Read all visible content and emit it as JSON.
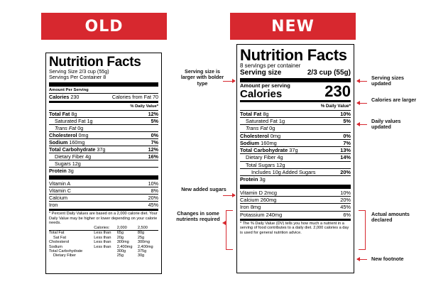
{
  "banners": {
    "old": "OLD",
    "new": "NEW"
  },
  "old_label": {
    "title": "Nutrition Facts",
    "serving_size": "Serving Size 2/3 cup (55g)",
    "servings_per": "Servings Per Container 8",
    "amount_per": "Amount Per Serving",
    "calories_label": "Calories",
    "calories_value": "230",
    "fat_cal": "Calories from Fat 70",
    "dv_header": "% Daily Value*",
    "rows": [
      {
        "name": "Total Fat",
        "amt": "8g",
        "dv": "12%"
      },
      {
        "name": "Saturated Fat",
        "amt": "1g",
        "dv": "5%"
      },
      {
        "name": "Trans Fat",
        "amt": "0g",
        "dv": ""
      },
      {
        "name": "Cholesterol",
        "amt": "0mg",
        "dv": "0%"
      },
      {
        "name": "Sodium",
        "amt": "160mg",
        "dv": "7%"
      },
      {
        "name": "Total Carbohydrate",
        "amt": "37g",
        "dv": "12%"
      },
      {
        "name": "Dietary Fiber",
        "amt": "4g",
        "dv": "16%"
      },
      {
        "name": "Sugars",
        "amt": "12g",
        "dv": ""
      },
      {
        "name": "Protein",
        "amt": "3g",
        "dv": ""
      }
    ],
    "vitamins": [
      {
        "name": "Vitamin A",
        "dv": "10%"
      },
      {
        "name": "Vitamin C",
        "dv": "8%"
      },
      {
        "name": "Calcium",
        "dv": "20%"
      },
      {
        "name": "Iron",
        "dv": "45%"
      }
    ],
    "footnote": "* Percent Daily Values are based on a 2,000 calorie diet. Your Daily Value may be higher or lower depending on your calorie needs.",
    "foot_table": {
      "header": [
        "",
        "Calories:",
        "2,000",
        "2,500"
      ],
      "rows": [
        [
          "Total Fat",
          "Less than",
          "65g",
          "80g"
        ],
        [
          "Sat Fat",
          "Less than",
          "20g",
          "25g"
        ],
        [
          "Cholesterol",
          "Less than",
          "300mg",
          "300mg"
        ],
        [
          "Sodium",
          "Less than",
          "2,400mg",
          "2,400mg"
        ],
        [
          "Total Carbohydrate",
          "",
          "300g",
          "375g"
        ],
        [
          "Dietary Fiber",
          "",
          "25g",
          "30g"
        ]
      ]
    }
  },
  "new_label": {
    "title": "Nutrition Facts",
    "servings_per": "8 servings per container",
    "serving_size_label": "Serving size",
    "serving_size_value": "2/3 cup (55g)",
    "amount_per": "Amount per serving",
    "calories_label": "Calories",
    "calories_value": "230",
    "dv_header": "% Daily Value*",
    "rows": [
      {
        "name": "Total Fat",
        "amt": "8g",
        "dv": "10%"
      },
      {
        "name": "Saturated Fat",
        "amt": "1g",
        "dv": "5%"
      },
      {
        "name": "Trans Fat",
        "amt": "0g",
        "dv": ""
      },
      {
        "name": "Cholesterol",
        "amt": "0mg",
        "dv": "0%"
      },
      {
        "name": "Sodium",
        "amt": "160mg",
        "dv": "7%"
      },
      {
        "name": "Total Carbohydrate",
        "amt": "37g",
        "dv": "13%"
      },
      {
        "name": "Dietary Fiber",
        "amt": "4g",
        "dv": "14%"
      },
      {
        "name": "Total Sugars",
        "amt": "12g",
        "dv": ""
      },
      {
        "name": "Includes 10g Added Sugars",
        "amt": "",
        "dv": "20%"
      },
      {
        "name": "Protein",
        "amt": "3g",
        "dv": ""
      }
    ],
    "vitamins": [
      {
        "name": "Vitamin D",
        "amt": "2mcg",
        "dv": "10%"
      },
      {
        "name": "Calcium",
        "amt": "260mg",
        "dv": "20%"
      },
      {
        "name": "Iron",
        "amt": "8mg",
        "dv": "45%"
      },
      {
        "name": "Potassium",
        "amt": "240mg",
        "dv": "6%"
      }
    ],
    "footnote": "* The % Daily Value (DV) tells you how much a nutrient in a serving of food contributes to a daily diet. 2,000 calories a day is used for general nutrition advice."
  },
  "annotations": {
    "serving_size_larger": "Serving size is larger with bolder type",
    "new_added_sugars": "New added sugars",
    "changes_nutrients": "Changes in some nutrients required",
    "serving_sizes_updated": "Serving sizes updated",
    "calories_larger": "Calories are larger",
    "daily_values_updated": "Daily values updated",
    "actual_amounts": "Actual amounts declared",
    "new_footnote": "New footnote"
  },
  "colors": {
    "accent": "#d7282f"
  }
}
